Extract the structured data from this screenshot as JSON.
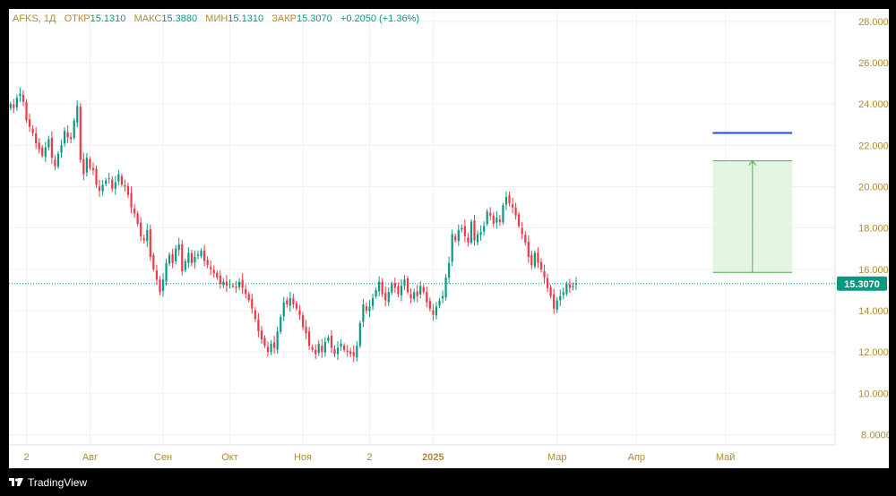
{
  "legend": {
    "ticker": "AFKS, 1Д",
    "open_label": "ОТКР",
    "open_value": "15.1310",
    "high_label": "МАКС",
    "high_value": "15.3880",
    "low_label": "МИН",
    "low_value": "15.1310",
    "close_label": "ЗАКР",
    "close_value": "15.3070",
    "change": "+0.2050 (+1.36%)"
  },
  "footer": {
    "brand": "TradingView"
  },
  "colors": {
    "up": "#089981",
    "down": "#f23645",
    "axis_text": "#b08a2e",
    "projection_line": "#1e50c8",
    "range_fill": "#dff2dd",
    "range_border": "#4caf50"
  },
  "chart_data": {
    "type": "candlestick",
    "title": "AFKS, 1Д",
    "ylim": [
      7.5,
      28.6
    ],
    "yticks": [
      "28.0000",
      "26.0000",
      "24.0000",
      "22.0000",
      "20.0000",
      "18.0000",
      "16.0000",
      "14.0000",
      "12.0000",
      "10.0000",
      "8.0000"
    ],
    "ytick_values": [
      28,
      26,
      24,
      22,
      20,
      18,
      16,
      14,
      12,
      10,
      8
    ],
    "xticks": [
      {
        "label": "2",
        "bar": 5,
        "bold": false
      },
      {
        "label": "Авг",
        "bar": 25,
        "bold": false
      },
      {
        "label": "Сен",
        "bar": 48,
        "bold": false
      },
      {
        "label": "Окт",
        "bar": 69,
        "bold": false
      },
      {
        "label": "Ноя",
        "bar": 92,
        "bold": false
      },
      {
        "label": "2",
        "bar": 113,
        "bold": false
      },
      {
        "label": "2025",
        "bar": 133,
        "bold": true
      },
      {
        "label": "Мар",
        "bar": 172,
        "bold": false
      },
      {
        "label": "Апр",
        "bar": 197,
        "bold": false
      },
      {
        "label": "Май",
        "bar": 225,
        "bold": false
      }
    ],
    "bars_total": 260,
    "last_price": 15.307,
    "last_price_label": "15.3070",
    "grid": true,
    "projection": {
      "price": 22.6,
      "bar_from": 221,
      "bar_to": 246
    },
    "price_range": {
      "bar_from": 221,
      "bar_to": 246,
      "low": 15.85,
      "high": 21.25
    },
    "closes": [
      24.0,
      23.8,
      24.3,
      24.5,
      24.1,
      23.2,
      22.9,
      22.6,
      22.1,
      21.8,
      21.5,
      21.9,
      22.3,
      21.4,
      21.0,
      21.6,
      22.0,
      22.7,
      22.4,
      22.3,
      23.2,
      23.9,
      21.3,
      20.6,
      21.4,
      20.9,
      20.8,
      20.1,
      19.8,
      20.1,
      20.3,
      20.4,
      19.9,
      20.2,
      20.6,
      20.1,
      20.0,
      19.6,
      19.0,
      18.7,
      18.2,
      17.6,
      17.4,
      17.9,
      16.6,
      16.0,
      15.5,
      14.9,
      15.5,
      16.3,
      16.7,
      16.3,
      17.0,
      17.2,
      15.9,
      16.4,
      16.8,
      16.3,
      16.6,
      16.7,
      16.9,
      16.4,
      16.2,
      16.0,
      15.8,
      15.6,
      15.3,
      15.4,
      15.2,
      15.3,
      15.2,
      15.1,
      15.4,
      15.1,
      14.8,
      14.5,
      14.1,
      13.6,
      13.0,
      12.6,
      12.3,
      12.0,
      12.4,
      12.2,
      13.0,
      13.7,
      14.4,
      14.3,
      14.6,
      14.3,
      14.1,
      13.8,
      13.2,
      12.9,
      12.3,
      12.1,
      11.9,
      12.4,
      12.0,
      12.5,
      12.7,
      12.2,
      11.9,
      12.2,
      12.4,
      12.1,
      12.0,
      11.9,
      11.8,
      12.3,
      13.4,
      14.3,
      14.0,
      14.2,
      14.6,
      15.0,
      15.4,
      14.8,
      14.5,
      14.9,
      15.3,
      15.1,
      14.8,
      15.2,
      15.5,
      14.9,
      14.6,
      14.9,
      14.7,
      15.2,
      14.9,
      14.4,
      14.1,
      13.8,
      14.2,
      14.5,
      14.7,
      15.6,
      16.3,
      17.7,
      17.4,
      17.9,
      18.0,
      17.6,
      17.3,
      18.3,
      17.4,
      17.7,
      17.8,
      18.1,
      18.8,
      18.6,
      18.2,
      18.5,
      18.3,
      19.1,
      19.5,
      19.2,
      19.0,
      18.6,
      18.1,
      17.7,
      17.3,
      16.6,
      16.2,
      16.8,
      16.3,
      16.0,
      15.6,
      15.1,
      14.7,
      14.1,
      14.5,
      14.7,
      14.9,
      15.3,
      15.1,
      15.2,
      15.307
    ],
    "closes_note_bar_offset": 0
  }
}
